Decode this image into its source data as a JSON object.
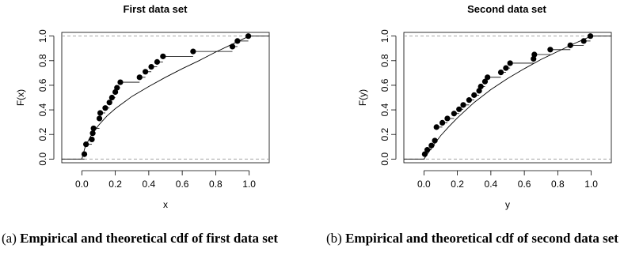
{
  "captions": {
    "a": {
      "label": "(a)",
      "text": "Empirical and theoretical cdf of first data set"
    },
    "b": {
      "label": "(b)",
      "text": "Empirical and theoretical cdf of second data set"
    }
  },
  "chart_data": [
    {
      "type": "scatter",
      "title": "First data set",
      "xlabel": "x",
      "ylabel": "F(x)",
      "xlim": [
        -0.12,
        1.12
      ],
      "ylim": [
        -0.03,
        1.03
      ],
      "xticks": [
        "0.0",
        "0.2",
        "0.4",
        "0.6",
        "0.8",
        "1.0"
      ],
      "yticks": [
        "0.0",
        "0.2",
        "0.4",
        "0.6",
        "0.8",
        "1.0"
      ],
      "grid": false,
      "reference_lines_y": [
        0,
        1
      ],
      "series": [
        {
          "kind": "empirical_cdf_points",
          "x": [
            0.015,
            0.025,
            0.06,
            0.065,
            0.07,
            0.105,
            0.11,
            0.14,
            0.165,
            0.18,
            0.2,
            0.21,
            0.23,
            0.345,
            0.38,
            0.415,
            0.45,
            0.485,
            0.665,
            0.9,
            0.93,
            0.995
          ],
          "y": [
            0.04,
            0.12,
            0.16,
            0.21,
            0.25,
            0.33,
            0.375,
            0.415,
            0.46,
            0.5,
            0.545,
            0.58,
            0.625,
            0.665,
            0.71,
            0.75,
            0.79,
            0.835,
            0.875,
            0.915,
            0.96,
            1.0
          ]
        },
        {
          "kind": "theoretical_cdf_curve",
          "x": [
            0.0,
            0.02,
            0.05,
            0.1,
            0.15,
            0.2,
            0.3,
            0.4,
            0.5,
            0.6,
            0.7,
            0.8,
            0.9,
            1.0
          ],
          "y": [
            0.0,
            0.1,
            0.18,
            0.275,
            0.35,
            0.41,
            0.51,
            0.59,
            0.665,
            0.735,
            0.8,
            0.87,
            0.935,
            1.0
          ]
        }
      ]
    },
    {
      "type": "scatter",
      "title": "Second data set",
      "xlabel": "y",
      "ylabel": "F(y)",
      "xlim": [
        -0.12,
        1.12
      ],
      "ylim": [
        -0.03,
        1.03
      ],
      "xticks": [
        "0.0",
        "0.2",
        "0.4",
        "0.6",
        "0.8",
        "1.0"
      ],
      "yticks": [
        "0.0",
        "0.2",
        "0.4",
        "0.6",
        "0.8",
        "1.0"
      ],
      "grid": false,
      "reference_lines_y": [
        0,
        1
      ],
      "series": [
        {
          "kind": "empirical_cdf_points",
          "x": [
            0.005,
            0.02,
            0.045,
            0.065,
            0.075,
            0.11,
            0.14,
            0.18,
            0.21,
            0.235,
            0.27,
            0.3,
            0.33,
            0.34,
            0.365,
            0.38,
            0.46,
            0.49,
            0.515,
            0.655,
            0.66,
            0.755,
            0.875,
            0.955,
            0.995
          ],
          "y": [
            0.04,
            0.075,
            0.11,
            0.15,
            0.26,
            0.295,
            0.33,
            0.37,
            0.405,
            0.44,
            0.48,
            0.52,
            0.555,
            0.59,
            0.63,
            0.665,
            0.705,
            0.74,
            0.78,
            0.815,
            0.85,
            0.89,
            0.925,
            0.96,
            1.0
          ]
        },
        {
          "kind": "theoretical_cdf_curve",
          "x": [
            0.0,
            0.05,
            0.1,
            0.15,
            0.2,
            0.3,
            0.4,
            0.5,
            0.6,
            0.7,
            0.8,
            0.9,
            1.0
          ],
          "y": [
            0.0,
            0.1,
            0.19,
            0.265,
            0.335,
            0.46,
            0.565,
            0.655,
            0.735,
            0.81,
            0.875,
            0.94,
            1.0
          ]
        }
      ]
    }
  ]
}
